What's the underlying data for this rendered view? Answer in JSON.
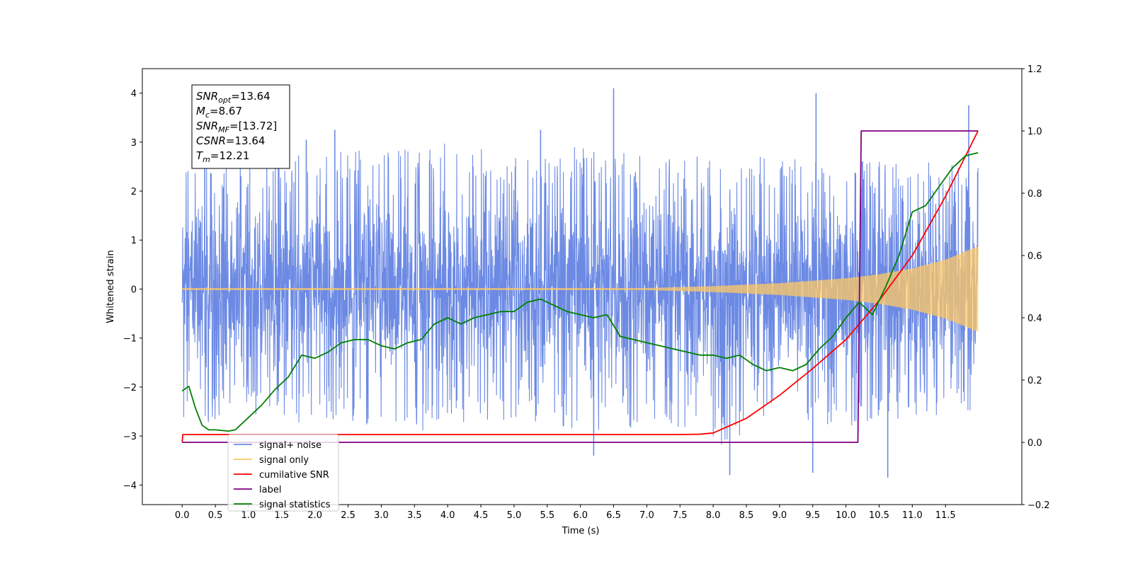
{
  "chart_data": {
    "type": "line",
    "xlabel": "Time (s)",
    "ylabel": "Whitened strain",
    "xlim": [
      -0.6,
      12.65
    ],
    "ylim": [
      -4.4,
      4.5
    ],
    "y2lim": [
      -0.2,
      1.2
    ],
    "grid": false,
    "legend_position": "lower-left",
    "x_ticks": [
      "0.0",
      "0.5",
      "1.0",
      "1.5",
      "2.0",
      "2.5",
      "3.0",
      "3.5",
      "4.0",
      "4.5",
      "5.0",
      "5.5",
      "6.0",
      "6.5",
      "7.0",
      "7.5",
      "8.0",
      "8.5",
      "9.0",
      "9.5",
      "10.0",
      "10.5",
      "11.0",
      "11.5"
    ],
    "y_ticks": [
      "4",
      "3",
      "2",
      "1",
      "0",
      "−1",
      "−2",
      "−3",
      "−4"
    ],
    "y2_ticks": [
      "1.2",
      "1.0",
      "0.8",
      "0.6",
      "0.4",
      "0.2",
      "0.0",
      "−0.2"
    ],
    "info_box": [
      {
        "base": "SNR",
        "sub": "opt",
        "rest": "=13.64"
      },
      {
        "base": "M",
        "sub": "c",
        "rest": "=8.67"
      },
      {
        "base": "SNR",
        "sub": "MF",
        "rest": "=[13.72]"
      },
      {
        "base": "CSNR",
        "sub": "",
        "rest": "=13.64"
      },
      {
        "base": "T",
        "sub": "m",
        "rest": "=12.21"
      }
    ],
    "legend": [
      {
        "label": "signal+ noise",
        "color": "#6c8ae4"
      },
      {
        "label": "signal only",
        "color": "#ffc864"
      },
      {
        "label": "cumilative SNR",
        "color": "#ff0000"
      },
      {
        "label": "label",
        "color": "#800080"
      },
      {
        "label": "signal statistics",
        "color": "#008000"
      }
    ],
    "series": [
      {
        "name": "signal+ noise",
        "axis": "left",
        "color": "#6c8ae4",
        "x_range": [
          0,
          11.99
        ],
        "noise_std": 1.0,
        "envelope": [
          [
            0,
            -2.8,
            2.8
          ],
          [
            1,
            -2.6,
            2.7
          ],
          [
            2,
            -2.8,
            2.9
          ],
          [
            3,
            -2.9,
            2.8
          ],
          [
            4,
            -3.0,
            3.0
          ],
          [
            5,
            -2.6,
            2.8
          ],
          [
            6,
            -2.9,
            2.9
          ],
          [
            7,
            -2.8,
            2.7
          ],
          [
            8,
            -3.2,
            2.7
          ],
          [
            9,
            -3.0,
            2.7
          ],
          [
            10,
            -2.8,
            2.6
          ],
          [
            11,
            -2.6,
            2.6
          ],
          [
            11.99,
            -2.5,
            2.5
          ]
        ],
        "notable_peaks": [
          [
            0.34,
            2.5
          ],
          [
            1.87,
            3.05
          ],
          [
            2.3,
            3.25
          ],
          [
            5.4,
            3.25
          ],
          [
            6.5,
            4.1
          ],
          [
            9.55,
            4.0
          ],
          [
            11.85,
            3.75
          ],
          [
            10.63,
            -3.85
          ],
          [
            9.5,
            -3.75
          ],
          [
            8.25,
            -3.8
          ],
          [
            6.2,
            -3.4
          ]
        ]
      },
      {
        "name": "signal only",
        "axis": "left",
        "color": "#ffc864",
        "x_range": [
          0,
          11.99
        ],
        "amplitude": [
          [
            0,
            0.02
          ],
          [
            7.0,
            0.02
          ],
          [
            8.0,
            0.06
          ],
          [
            9.0,
            0.12
          ],
          [
            10.0,
            0.22
          ],
          [
            10.5,
            0.3
          ],
          [
            11.0,
            0.42
          ],
          [
            11.5,
            0.6
          ],
          [
            11.99,
            0.87
          ]
        ]
      },
      {
        "name": "cumilative SNR",
        "axis": "right",
        "color": "#ff0000",
        "x": [
          0,
          0.01,
          7.5,
          7.8,
          8.0,
          8.5,
          9.0,
          9.5,
          10.0,
          10.5,
          11.0,
          11.5,
          11.99
        ],
        "values": [
          0,
          0.025,
          0.025,
          0.026,
          0.03,
          0.077,
          0.151,
          0.237,
          0.33,
          0.455,
          0.6,
          0.79,
          1.0
        ]
      },
      {
        "name": "label",
        "axis": "right",
        "color": "#800080",
        "x": [
          0,
          10.18,
          10.23,
          11.99
        ],
        "values": [
          0.0,
          0.0,
          1.0,
          1.0
        ]
      },
      {
        "name": "signal statistics",
        "axis": "right",
        "color": "#008000",
        "x": [
          0,
          0.1,
          0.2,
          0.3,
          0.4,
          0.5,
          0.6,
          0.7,
          0.8,
          1.0,
          1.2,
          1.4,
          1.6,
          1.8,
          2.0,
          2.2,
          2.4,
          2.6,
          2.8,
          3.0,
          3.2,
          3.4,
          3.6,
          3.8,
          4.0,
          4.2,
          4.4,
          4.6,
          4.8,
          5.0,
          5.2,
          5.4,
          5.6,
          5.8,
          6.0,
          6.2,
          6.4,
          6.6,
          6.8,
          7.0,
          7.2,
          7.4,
          7.6,
          7.8,
          8.0,
          8.2,
          8.4,
          8.6,
          8.8,
          9.0,
          9.2,
          9.4,
          9.6,
          9.8,
          10.0,
          10.2,
          10.4,
          10.6,
          10.8,
          11.0,
          11.2,
          11.4,
          11.6,
          11.8,
          11.99
        ],
        "values": [
          0.165,
          0.18,
          0.11,
          0.055,
          0.04,
          0.04,
          0.038,
          0.036,
          0.04,
          0.08,
          0.12,
          0.17,
          0.21,
          0.28,
          0.27,
          0.29,
          0.32,
          0.33,
          0.33,
          0.31,
          0.3,
          0.32,
          0.33,
          0.38,
          0.4,
          0.38,
          0.4,
          0.41,
          0.42,
          0.42,
          0.45,
          0.46,
          0.44,
          0.42,
          0.41,
          0.4,
          0.41,
          0.34,
          0.33,
          0.32,
          0.31,
          0.3,
          0.29,
          0.28,
          0.28,
          0.27,
          0.28,
          0.25,
          0.23,
          0.24,
          0.23,
          0.25,
          0.3,
          0.34,
          0.4,
          0.45,
          0.41,
          0.5,
          0.6,
          0.74,
          0.76,
          0.82,
          0.88,
          0.92,
          0.93
        ]
      }
    ]
  }
}
